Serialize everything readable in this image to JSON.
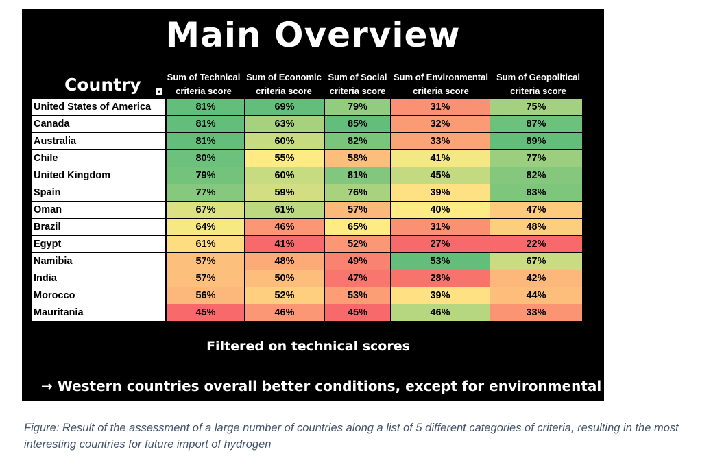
{
  "title": "Main Overview",
  "filter_note": "Filtered on technical scores",
  "conclusion": "→ Western countries overall better conditions, except for environmental",
  "caption": "Figure:  Result of the assessment of a large number of countries along a list of 5 different categories of criteria, resulting in the most interesting countries for future import of hydrogen",
  "colors": {
    "panel_bg": "#000000",
    "caption_text": "#44546a"
  },
  "chart_data": {
    "type": "table",
    "row_header": "Country",
    "columns": [
      [
        "Sum of Technical",
        "criteria score"
      ],
      [
        "Sum of Economic",
        "criteria score"
      ],
      [
        "Sum of Social",
        "criteria score"
      ],
      [
        "Sum of Environmental",
        "criteria score"
      ],
      [
        "Sum of Geopolitical",
        "criteria score"
      ]
    ],
    "rows": [
      {
        "country": "United States of America",
        "values": [
          81,
          69,
          79,
          31,
          75
        ]
      },
      {
        "country": "Canada",
        "values": [
          81,
          63,
          85,
          32,
          87
        ]
      },
      {
        "country": "Australia",
        "values": [
          81,
          60,
          82,
          33,
          89
        ]
      },
      {
        "country": "Chile",
        "values": [
          80,
          55,
          58,
          41,
          77
        ]
      },
      {
        "country": "United Kingdom",
        "values": [
          79,
          60,
          81,
          45,
          82
        ]
      },
      {
        "country": "Spain",
        "values": [
          77,
          59,
          76,
          39,
          83
        ]
      },
      {
        "country": "Oman",
        "values": [
          67,
          61,
          57,
          40,
          47
        ]
      },
      {
        "country": "Brazil",
        "values": [
          64,
          46,
          65,
          31,
          48
        ]
      },
      {
        "country": "Egypt",
        "values": [
          61,
          41,
          52,
          27,
          22
        ]
      },
      {
        "country": "Namibia",
        "values": [
          57,
          48,
          49,
          53,
          67
        ]
      },
      {
        "country": "India",
        "values": [
          57,
          50,
          47,
          28,
          42
        ]
      },
      {
        "country": "Morocco",
        "values": [
          56,
          52,
          53,
          39,
          44
        ]
      },
      {
        "country": "Mauritania",
        "values": [
          45,
          46,
          45,
          46,
          33
        ]
      }
    ],
    "value_unit": "%",
    "color_scale": {
      "low": "#f8696b",
      "mid": "#ffeb84",
      "high": "#63be7b"
    }
  }
}
